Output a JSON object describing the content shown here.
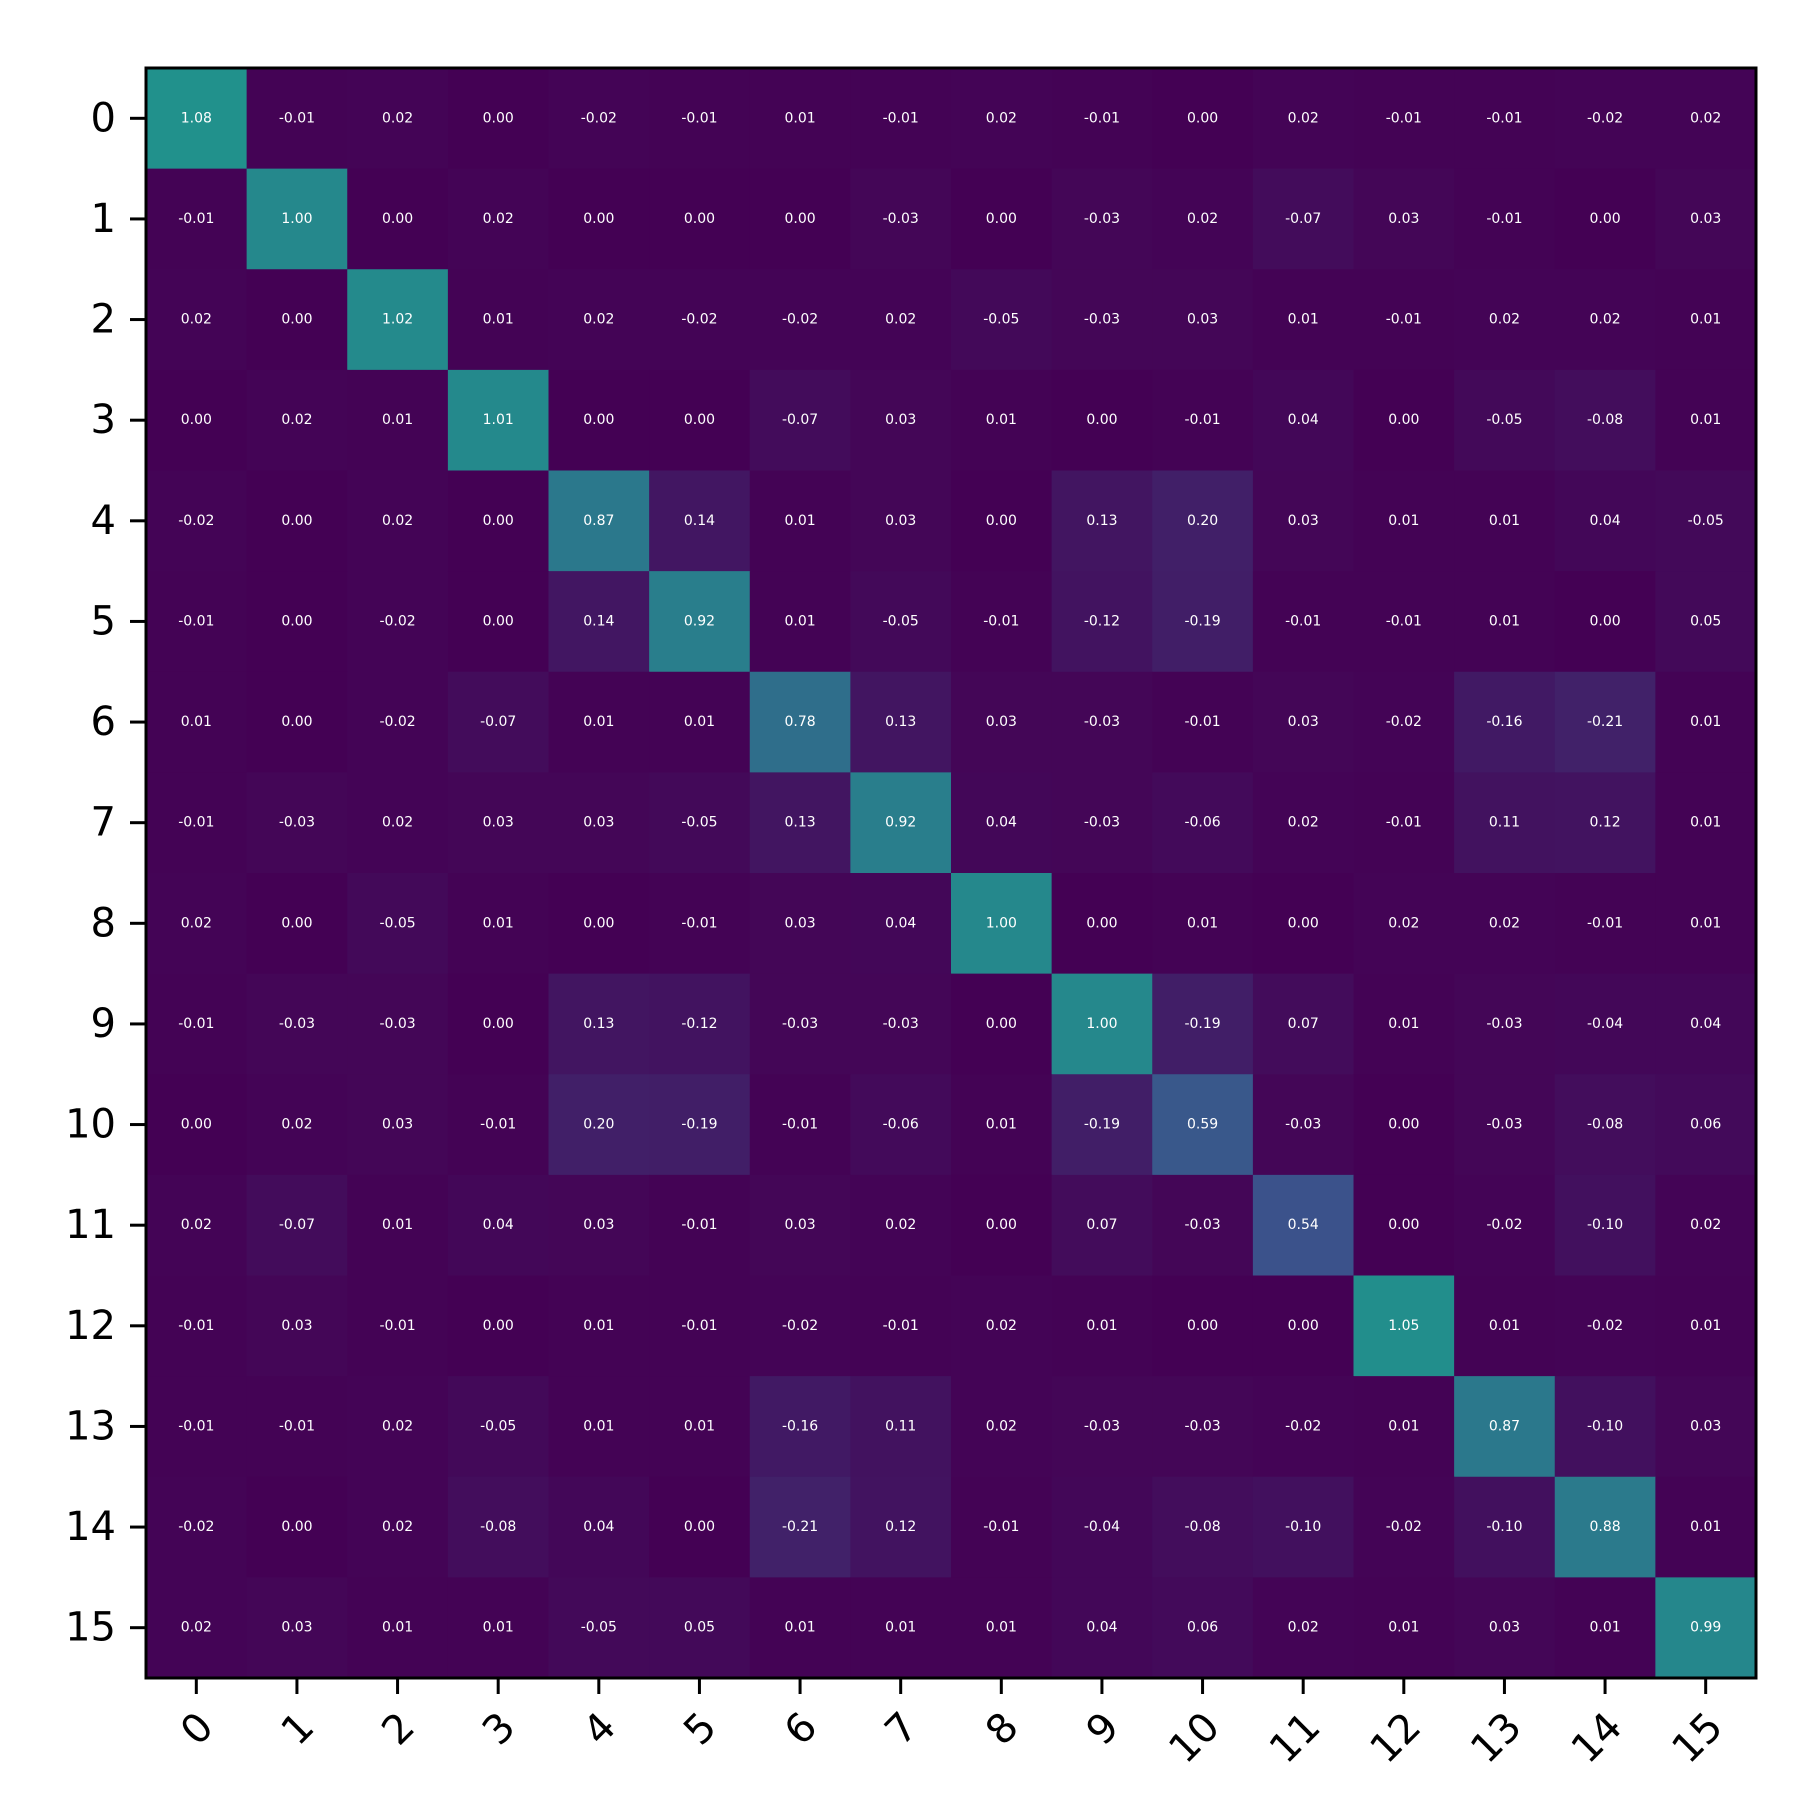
{
  "chart_data": {
    "type": "heatmap",
    "title": "",
    "xlabel": "",
    "ylabel": "",
    "x_categories": [
      "0",
      "1",
      "2",
      "3",
      "4",
      "5",
      "6",
      "7",
      "8",
      "9",
      "10",
      "11",
      "12",
      "13",
      "14",
      "15"
    ],
    "y_categories": [
      "0",
      "1",
      "2",
      "3",
      "4",
      "5",
      "6",
      "7",
      "8",
      "9",
      "10",
      "11",
      "12",
      "13",
      "14",
      "15"
    ],
    "values": [
      [
        1.08,
        -0.01,
        0.02,
        0.0,
        -0.02,
        -0.01,
        0.01,
        -0.01,
        0.02,
        -0.01,
        0.0,
        0.02,
        -0.01,
        -0.01,
        -0.02,
        0.02
      ],
      [
        -0.01,
        1.0,
        -0.0,
        0.02,
        -0.0,
        0.0,
        0.0,
        -0.03,
        0.0,
        -0.03,
        0.02,
        -0.07,
        0.03,
        -0.01,
        -0.0,
        0.03
      ],
      [
        0.02,
        -0.0,
        1.02,
        0.01,
        0.02,
        -0.02,
        -0.02,
        0.02,
        -0.05,
        -0.03,
        0.03,
        0.01,
        -0.01,
        0.02,
        0.02,
        0.01
      ],
      [
        0.0,
        0.02,
        0.01,
        1.01,
        -0.0,
        -0.0,
        -0.07,
        0.03,
        0.01,
        -0.0,
        -0.01,
        0.04,
        0.0,
        -0.05,
        -0.08,
        0.01
      ],
      [
        -0.02,
        -0.0,
        0.02,
        -0.0,
        0.87,
        0.14,
        0.01,
        0.03,
        0.0,
        0.13,
        0.2,
        0.03,
        0.01,
        0.01,
        0.04,
        -0.05
      ],
      [
        -0.01,
        0.0,
        -0.02,
        -0.0,
        0.14,
        0.92,
        0.01,
        -0.05,
        -0.01,
        -0.12,
        -0.19,
        -0.01,
        -0.01,
        0.01,
        0.0,
        0.05
      ],
      [
        0.01,
        0.0,
        -0.02,
        -0.07,
        0.01,
        0.01,
        0.78,
        0.13,
        0.03,
        -0.03,
        -0.01,
        0.03,
        -0.02,
        -0.16,
        -0.21,
        0.01
      ],
      [
        -0.01,
        -0.03,
        0.02,
        0.03,
        0.03,
        -0.05,
        0.13,
        0.92,
        0.04,
        -0.03,
        -0.06,
        0.02,
        -0.01,
        0.11,
        0.12,
        0.01
      ],
      [
        0.02,
        0.0,
        -0.05,
        0.01,
        0.0,
        -0.01,
        0.03,
        0.04,
        1.0,
        -0.0,
        0.01,
        -0.0,
        0.02,
        0.02,
        -0.01,
        0.01
      ],
      [
        -0.01,
        -0.03,
        -0.03,
        -0.0,
        0.13,
        -0.12,
        -0.03,
        -0.03,
        -0.0,
        1.0,
        -0.19,
        0.07,
        0.01,
        -0.03,
        -0.04,
        0.04
      ],
      [
        0.0,
        0.02,
        0.03,
        -0.01,
        0.2,
        -0.19,
        -0.01,
        -0.06,
        0.01,
        -0.19,
        0.59,
        -0.03,
        0.0,
        -0.03,
        -0.08,
        0.06
      ],
      [
        0.02,
        -0.07,
        0.01,
        0.04,
        0.03,
        -0.01,
        0.03,
        0.02,
        -0.0,
        0.07,
        -0.03,
        0.54,
        0.0,
        -0.02,
        -0.1,
        0.02
      ],
      [
        -0.01,
        0.03,
        -0.01,
        0.0,
        0.01,
        -0.01,
        -0.02,
        -0.01,
        0.02,
        0.01,
        0.0,
        0.0,
        1.05,
        0.01,
        -0.02,
        0.01
      ],
      [
        -0.01,
        -0.01,
        0.02,
        -0.05,
        0.01,
        0.01,
        -0.16,
        0.11,
        0.02,
        -0.03,
        -0.03,
        -0.02,
        0.01,
        0.87,
        -0.1,
        0.03
      ],
      [
        -0.02,
        -0.0,
        0.02,
        -0.08,
        0.04,
        0.0,
        -0.21,
        0.12,
        -0.01,
        -0.04,
        -0.08,
        -0.1,
        -0.02,
        -0.1,
        0.88,
        0.01
      ],
      [
        0.02,
        0.03,
        0.01,
        0.01,
        -0.05,
        0.05,
        0.01,
        0.01,
        0.01,
        0.04,
        0.06,
        0.02,
        0.01,
        0.03,
        0.01,
        0.99
      ]
    ],
    "value_format": "2-decimal",
    "colormap": "viridis-like (low=dark purple, high=teal)",
    "colors": {
      "low": "#440154",
      "mid": "#3b528b",
      "high": "#21918c"
    },
    "color_scale_basis": "absolute value",
    "grid": false,
    "legend": "none"
  }
}
